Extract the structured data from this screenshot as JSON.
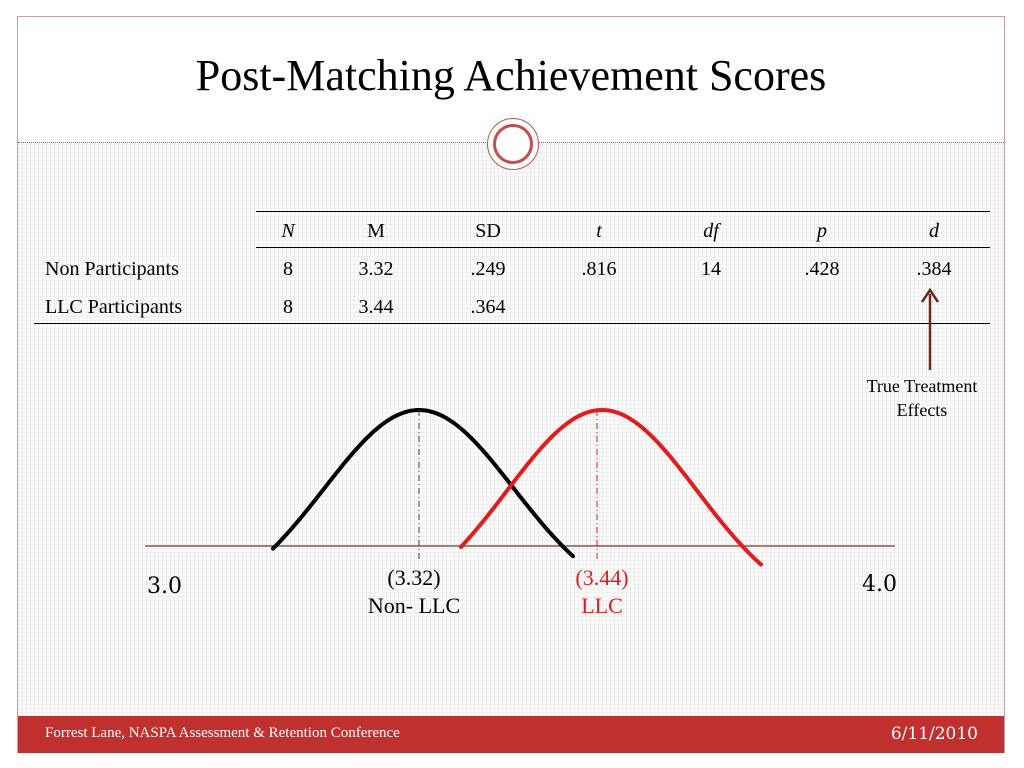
{
  "slide": {
    "title": "Post-Matching Achievement Scores",
    "footer_left": "Forrest Lane, NASPA Assessment & Retention Conference",
    "footer_right": "6/11/2010"
  },
  "table": {
    "headers": [
      "N",
      "M",
      "SD",
      "t",
      "df",
      "p",
      "d"
    ],
    "italic_headers": [
      true,
      false,
      false,
      true,
      true,
      true,
      true
    ],
    "rows": [
      {
        "label": "Non Participants",
        "cells": [
          "8",
          "3.32",
          ".249",
          ".816",
          "14",
          ".428",
          ".384"
        ]
      },
      {
        "label": "LLC Participants",
        "cells": [
          "8",
          "3.44",
          ".364",
          "",
          "",
          "",
          ""
        ]
      }
    ]
  },
  "annotation": {
    "line1": "True Treatment",
    "line2": "Effects",
    "arrow_color": "#6b2a1f"
  },
  "distribution": {
    "axis_min_label": "3.0",
    "axis_max_label": "4.0",
    "groups": [
      {
        "value_label": "(3.32)",
        "name": "Non- LLC",
        "color": "#000000"
      },
      {
        "value_label": "(3.44)",
        "name": "LLC",
        "color": "#e31b1b"
      }
    ]
  },
  "colors": {
    "accent": "#c0302e",
    "axis_line": "#6b3a2a"
  }
}
